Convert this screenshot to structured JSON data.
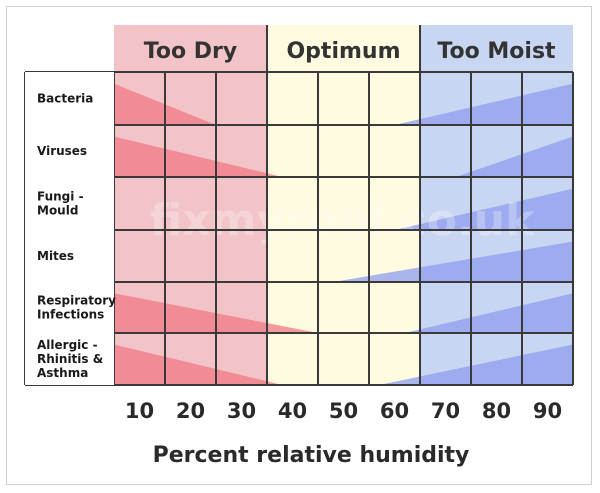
{
  "chart_data": {
    "type": "heatmap",
    "title": "",
    "xlabel": "Percent relative humidity",
    "ylabel": "",
    "x_ticks": [
      10,
      20,
      30,
      40,
      50,
      60,
      70,
      80,
      90
    ],
    "xlim": [
      5,
      95
    ],
    "zones": [
      {
        "name": "Too Dry",
        "range": [
          5,
          35
        ],
        "color": "#f2c4c8"
      },
      {
        "name": "Optimum",
        "range": [
          35,
          65
        ],
        "color": "#fefbe0"
      },
      {
        "name": "Too Moist",
        "range": [
          65,
          95
        ],
        "color": "#c9d6f2"
      }
    ],
    "dry_color": "#f07a86",
    "moist_color": "#8d9df0",
    "rows": [
      {
        "label": [
          "Bacteria"
        ],
        "dry_end": 25,
        "moist_start": 60
      },
      {
        "label": [
          "Viruses"
        ],
        "dry_end": 38,
        "moist_start": 72
      },
      {
        "label": [
          "Fungi -",
          "Mould"
        ],
        "dry_end": 5,
        "moist_start": 60
      },
      {
        "label": [
          "Mites"
        ],
        "dry_end": 5,
        "moist_start": 48
      },
      {
        "label": [
          "Respiratory",
          "Infections"
        ],
        "dry_end": 45,
        "moist_start": 62
      },
      {
        "label": [
          "Allergic -",
          "Rhinitis &",
          "Asthma"
        ],
        "dry_end": 38,
        "moist_start": 57
      }
    ],
    "watermark": "fixmyroof.co.uk"
  }
}
